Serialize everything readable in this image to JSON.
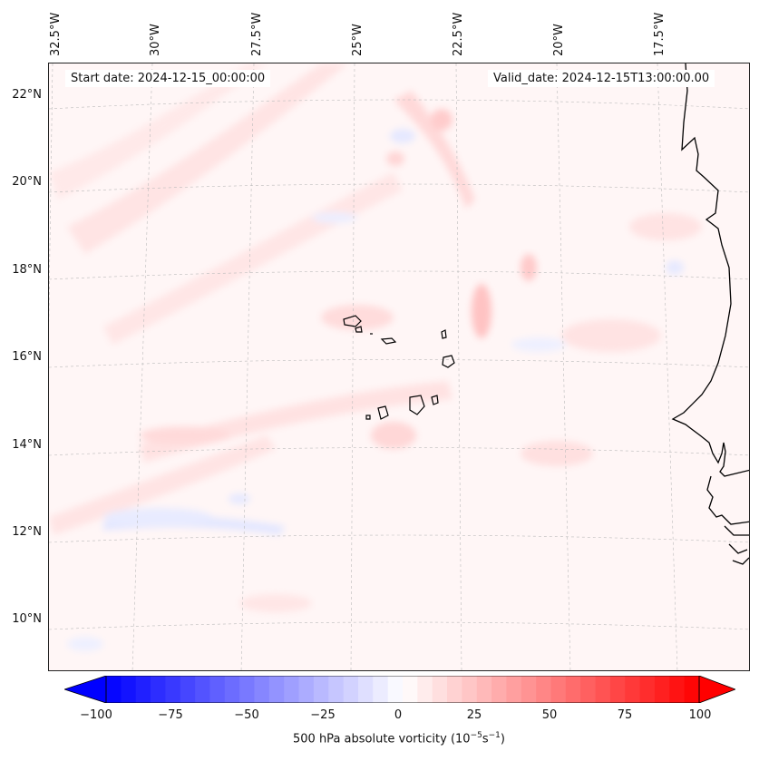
{
  "map": {
    "lon_labels": [
      "32.5°W",
      "30°W",
      "27.5°W",
      "25°W",
      "22.5°W",
      "20°W",
      "17.5°W"
    ],
    "lat_labels": [
      "22°N",
      "20°N",
      "18°N",
      "16°N",
      "14°N",
      "12°N",
      "10°N"
    ],
    "start_date": "Start date: 2024-12-15_00:00:00",
    "valid_date": "Valid_date: 2024-12-15T13:00:00.00",
    "field_colors": {
      "positive": "#ff0000",
      "negative": "#0000ff",
      "neutral": "#ffffff",
      "coastline": "#000000"
    }
  },
  "colorbar": {
    "ticks": [
      "−100",
      "−75",
      "−50",
      "−25",
      "0",
      "25",
      "50",
      "75",
      "100"
    ],
    "label_main": "500 hPa absolute vorticity (10",
    "label_exp1": "−5",
    "label_mid": "s",
    "label_exp2": "−1",
    "label_end": ")",
    "range": [
      -100,
      100
    ],
    "colormap": "bwr"
  }
}
